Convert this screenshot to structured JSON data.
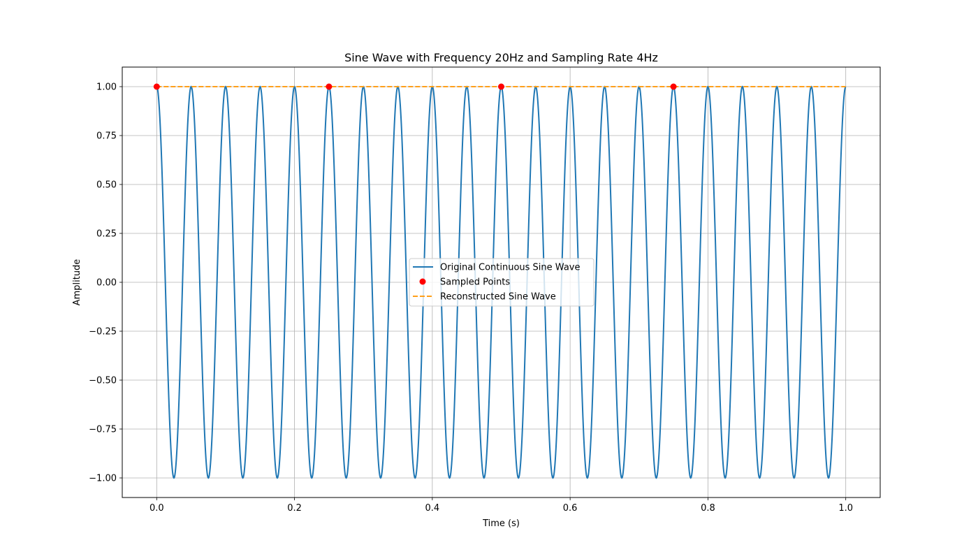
{
  "chart_data": {
    "type": "line",
    "title": "Sine Wave with Frequency 20Hz and Sampling Rate 4Hz",
    "xlabel": "Time (s)",
    "ylabel": "Amplitude",
    "xlim": [
      -0.05,
      1.05
    ],
    "ylim": [
      -1.1,
      1.1
    ],
    "x_ticks": [
      0.0,
      0.2,
      0.4,
      0.6,
      0.8,
      1.0
    ],
    "x_tick_labels": [
      "0.0",
      "0.2",
      "0.4",
      "0.6",
      "0.8",
      "1.0"
    ],
    "y_ticks": [
      1.0,
      0.75,
      0.5,
      0.25,
      0.0,
      -0.25,
      -0.5,
      -0.75,
      -1.0
    ],
    "y_tick_labels": [
      "1.00",
      "0.75",
      "0.50",
      "0.25",
      "0.00",
      "−0.25",
      "−0.50",
      "−0.75",
      "−1.00"
    ],
    "grid": true,
    "legend_position": "center",
    "series": [
      {
        "name": "Original Continuous Sine Wave",
        "style": "solid",
        "color": "#1f77b4",
        "function": "cos",
        "frequency_hz": 20,
        "amplitude": 1,
        "x_range": [
          0,
          1
        ]
      },
      {
        "name": "Sampled Points",
        "style": "scatter",
        "color": "#ff0000",
        "x": [
          0.0,
          0.25,
          0.5,
          0.75
        ],
        "y": [
          1.0,
          1.0,
          1.0,
          1.0
        ]
      },
      {
        "name": "Reconstructed Sine Wave",
        "style": "dashed",
        "color": "#ff9f1a",
        "x": [
          0.0,
          1.0
        ],
        "y": [
          1.0,
          1.0
        ]
      }
    ]
  }
}
